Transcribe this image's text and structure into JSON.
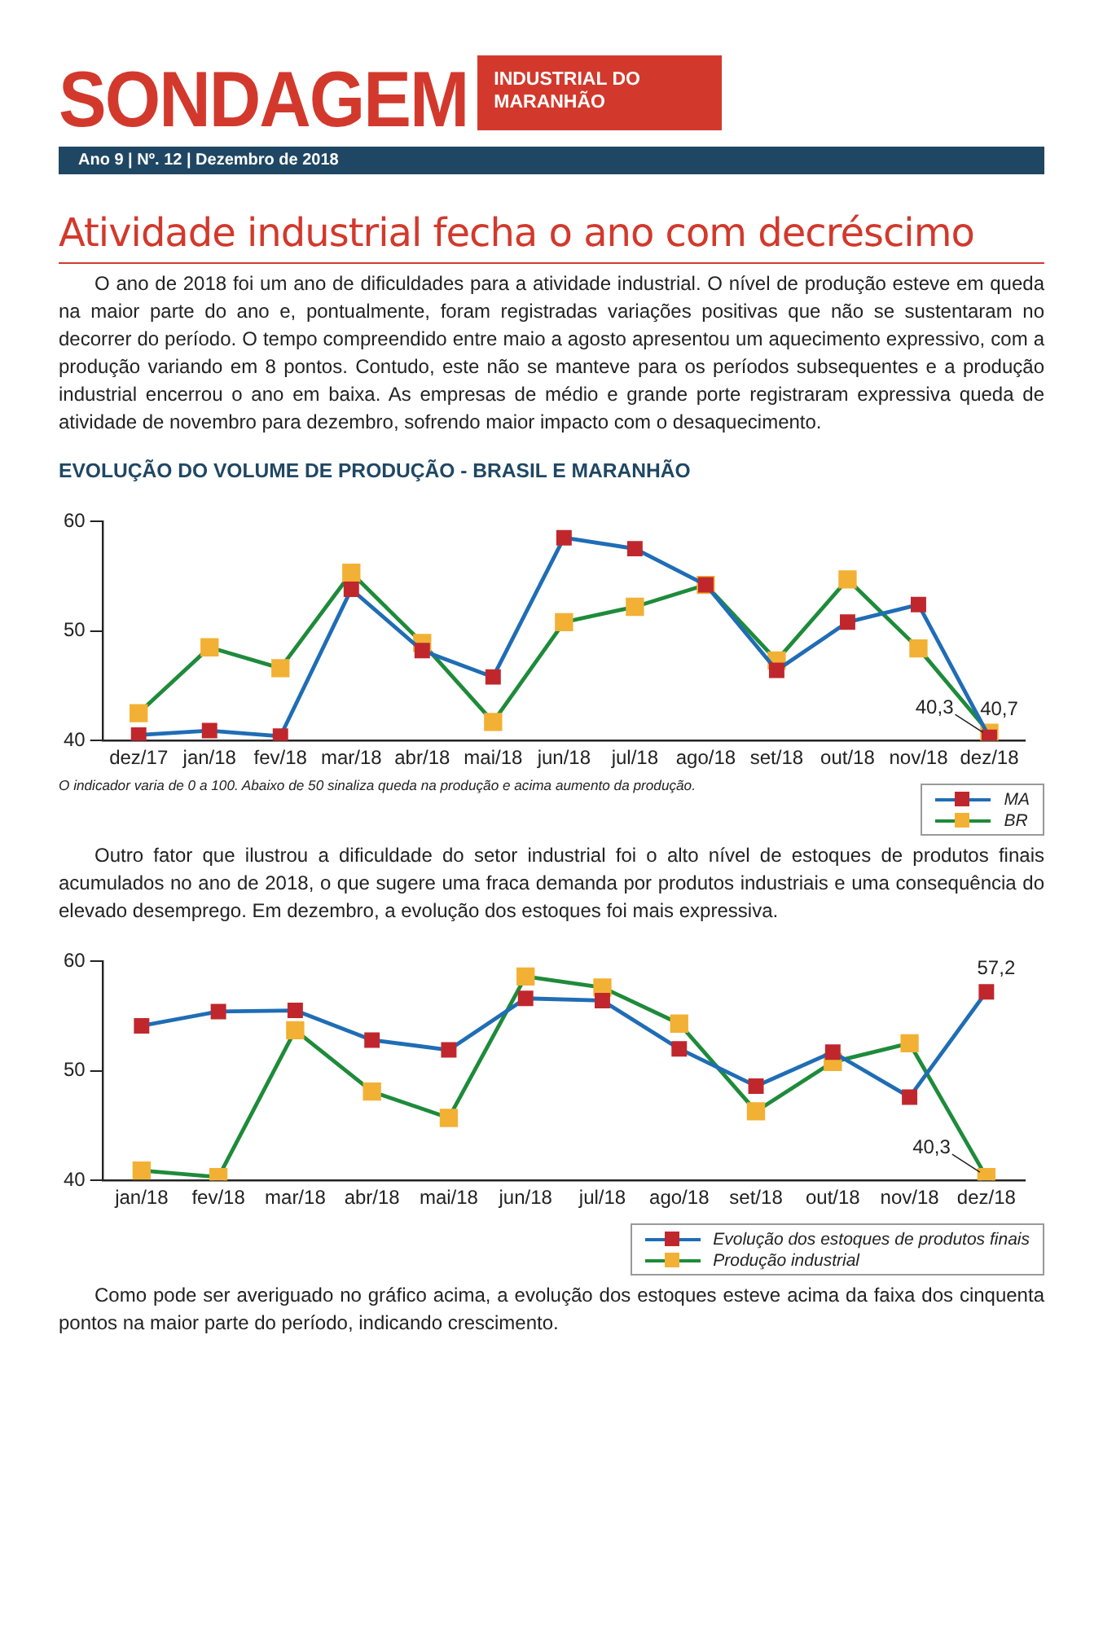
{
  "chart_data": [
    {
      "type": "other",
      "title": "SONDAGEM",
      "subtitle": "INDUSTRIAL DO MARANHÃO",
      "annotations": [
        "Ano 9 | Nº. 12 | Dezembro de 2018"
      ]
    },
    {
      "type": "other",
      "title": "Atividade industrial fecha o ano com decréscimo",
      "annotations": [
        "O ano de 2018 foi um ano de dificuldades para a atividade industrial. O nível de produção esteve em queda na maior parte do ano e, pontualmente, foram registradas variações positivas que não se sustentaram no decorrer do período. O tempo compreendido entre maio a agosto apresentou um aquecimento expressivo,  com a produção variando em 8 pontos. Contudo, este não se manteve para os períodos subsequentes e a produção industrial encerrou o ano em baixa. As empresas de médio e grande porte registraram expressiva queda de atividade de novembro para dezembro, sofrendo maior impacto com o desaquecimento."
      ]
    },
    {
      "type": "line",
      "title": "EVOLUÇÃO DO VOLUME DE PRODUÇÃO - BRASIL E MARANHÃO",
      "categories": [
        "dez/17",
        "jan/18",
        "fev/18",
        "mar/18",
        "abr/18",
        "mai/18",
        "jun/18",
        "jul/18",
        "ago/18",
        "set/18",
        "out/18",
        "nov/18",
        "dez/18"
      ],
      "series": [
        {
          "name": "MA",
          "color": "#1f6db5",
          "colors": [
            "#c0272d",
            "#c0272d",
            "#c0272d",
            "#c0272d",
            "#c0272d",
            "#c0272d",
            "#c0272d",
            "#c0272d",
            "#c0272d",
            "#c0272d",
            "#c0272d",
            "#c0272d",
            "#c0272d"
          ],
          "values": [
            40.5,
            40.9,
            40.4,
            53.8,
            48.2,
            45.8,
            58.5,
            57.5,
            54.2,
            46.4,
            50.8,
            52.4,
            40.3
          ],
          "value_labels": [
            null,
            null,
            null,
            null,
            null,
            null,
            null,
            null,
            null,
            null,
            null,
            null,
            "40,3"
          ]
        },
        {
          "name": "BR",
          "color": "#1e8b3a",
          "colors": [
            "#f2b134",
            "#f2b134",
            "#f2b134",
            "#f2b134",
            "#f2b134",
            "#f2b134",
            "#f2b134",
            "#f2b134",
            "#f2b134",
            "#f2b134",
            "#f2b134",
            "#f2b134",
            "#f2b134"
          ],
          "values": [
            42.5,
            48.5,
            46.6,
            55.3,
            48.9,
            41.7,
            50.8,
            52.2,
            54.2,
            47.3,
            54.7,
            48.4,
            40.7
          ],
          "value_labels": [
            null,
            null,
            null,
            null,
            null,
            null,
            null,
            null,
            null,
            null,
            null,
            null,
            "40,7"
          ]
        }
      ],
      "ylim": [
        40,
        60
      ],
      "yticks": [
        40,
        50,
        60
      ],
      "grid": false,
      "legend": "bottom right",
      "marker": "square",
      "line_style": "solid",
      "annotations": [
        "O indicador varia de 0 a 100. Abaixo de 50 sinaliza queda na produção e acima aumento da produção."
      ]
    },
    {
      "type": "other",
      "annotations": [
        "Outro fator que ilustrou a dificuldade do setor industrial foi o alto nível de estoques de produtos finais acumulados no ano de 2018, o que sugere uma fraca demanda por produtos industriais e uma consequência do elevado desemprego. Em dezembro, a evolução dos estoques foi mais expressiva."
      ]
    },
    {
      "type": "line",
      "categories": [
        "jan/18",
        "fev/18",
        "mar/18",
        "abr/18",
        "mai/18",
        "jun/18",
        "jul/18",
        "ago/18",
        "set/18",
        "out/18",
        "nov/18",
        "dez/18"
      ],
      "series": [
        {
          "name": "Evolução dos estoques de produtos finais",
          "color": "#1f6db5",
          "colors": [
            "#c0272d",
            "#c0272d",
            "#c0272d",
            "#c0272d",
            "#c0272d",
            "#c0272d",
            "#c0272d",
            "#c0272d",
            "#c0272d",
            "#c0272d",
            "#c0272d",
            "#c0272d"
          ],
          "values": [
            54.1,
            55.4,
            55.5,
            52.8,
            51.9,
            56.6,
            56.4,
            52.0,
            48.6,
            51.7,
            47.6,
            57.2
          ],
          "value_labels": [
            null,
            null,
            null,
            null,
            null,
            null,
            null,
            null,
            null,
            null,
            null,
            "57,2"
          ]
        },
        {
          "name": "Produção industrial",
          "color": "#1e8b3a",
          "colors": [
            "#f2b134",
            "#f2b134",
            "#f2b134",
            "#f2b134",
            "#f2b134",
            "#f2b134",
            "#f2b134",
            "#f2b134",
            "#f2b134",
            "#f2b134",
            "#f2b134",
            "#f2b134"
          ],
          "values": [
            40.9,
            40.3,
            53.7,
            48.1,
            45.7,
            58.6,
            57.6,
            54.3,
            46.3,
            50.8,
            52.5,
            40.3
          ],
          "value_labels": [
            null,
            null,
            null,
            null,
            null,
            null,
            null,
            null,
            null,
            null,
            null,
            "40,3"
          ]
        }
      ],
      "ylim": [
        40,
        60
      ],
      "yticks": [
        40,
        50,
        60
      ],
      "grid": false,
      "legend": "bottom right",
      "marker": "square",
      "line_style": "solid"
    },
    {
      "type": "other",
      "annotations": [
        "Como pode ser averiguado no gráfico acima, a evolução dos estoques esteve acima da faixa dos cinquenta pontos na maior parte do período, indicando crescimento."
      ]
    }
  ]
}
